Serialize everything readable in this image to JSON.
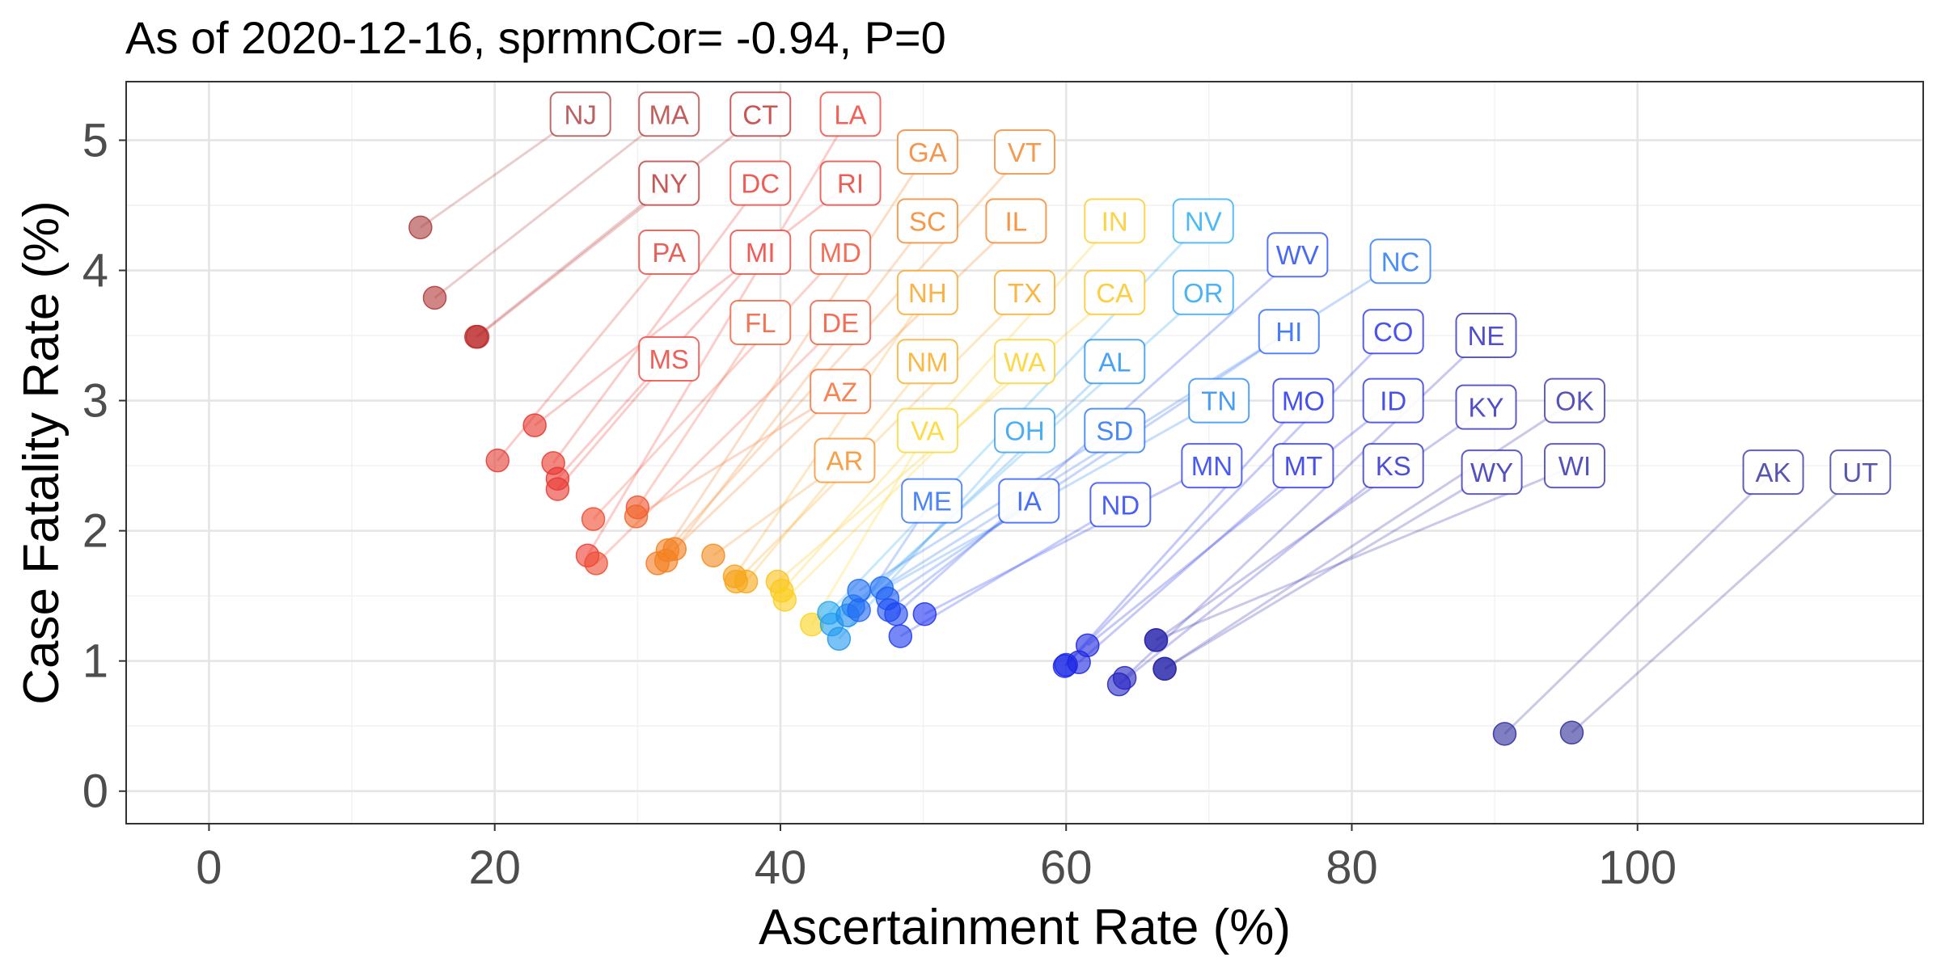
{
  "chart_data": {
    "type": "scatter",
    "title": "As of 2020-12-16, sprmnCor= -0.94, P=0",
    "xlabel": "Ascertainment Rate (%)",
    "ylabel": "Case Fatality Rate (%)",
    "xlim": [
      -5.8,
      120
    ],
    "ylim": [
      -0.25,
      5.45
    ],
    "xticks": [
      0,
      20,
      40,
      60,
      80,
      100
    ],
    "yticks": [
      0,
      1,
      2,
      3,
      4,
      5
    ],
    "grid": true,
    "legend": "none",
    "points": [
      {
        "state": "NJ",
        "x": 14.8,
        "y": 4.33,
        "color": "#aa3a3a",
        "lx": 26.0,
        "ly": 5.2
      },
      {
        "state": "MA",
        "x": 15.8,
        "y": 3.79,
        "color": "#b23636",
        "lx": 32.2,
        "ly": 5.2
      },
      {
        "state": "NY",
        "x": 18.7,
        "y": 3.49,
        "color": "#b82e2e",
        "lx": 32.2,
        "ly": 4.67
      },
      {
        "state": "CT",
        "x": 18.8,
        "y": 3.49,
        "color": "#be2a2a",
        "lx": 38.6,
        "ly": 5.2
      },
      {
        "state": "RI",
        "x": 22.8,
        "y": 2.81,
        "color": "#e6342c",
        "lx": 44.9,
        "ly": 4.67
      },
      {
        "state": "LA",
        "x": 26.5,
        "y": 1.81,
        "color": "#ee3a30",
        "lx": 44.9,
        "ly": 5.2
      },
      {
        "state": "DC",
        "x": 24.1,
        "y": 2.52,
        "color": "#e9372c",
        "lx": 38.6,
        "ly": 4.67
      },
      {
        "state": "PA",
        "x": 20.2,
        "y": 2.54,
        "color": "#e23a30",
        "lx": 32.2,
        "ly": 4.14
      },
      {
        "state": "MI",
        "x": 24.4,
        "y": 2.4,
        "color": "#ea3530",
        "lx": 38.6,
        "ly": 4.14
      },
      {
        "state": "MS",
        "x": 24.4,
        "y": 2.32,
        "color": "#ea3830",
        "lx": 32.2,
        "ly": 3.32
      },
      {
        "state": "MD",
        "x": 26.9,
        "y": 2.09,
        "color": "#f04a2e",
        "lx": 44.2,
        "ly": 4.14
      },
      {
        "state": "IL",
        "x": 32.6,
        "y": 1.86,
        "color": "#f47a1a",
        "lx": 56.5,
        "ly": 4.38
      },
      {
        "state": "DE",
        "x": 27.1,
        "y": 1.75,
        "color": "#f04a30",
        "lx": 44.2,
        "ly": 3.6
      },
      {
        "state": "FL",
        "x": 30.0,
        "y": 2.18,
        "color": "#f0502a",
        "lx": 38.6,
        "ly": 3.6
      },
      {
        "state": "AZ",
        "x": 29.9,
        "y": 2.11,
        "color": "#f26428",
        "lx": 44.2,
        "ly": 3.07
      },
      {
        "state": "GA",
        "x": 31.4,
        "y": 1.75,
        "color": "#f47a20",
        "lx": 50.3,
        "ly": 4.91
      },
      {
        "state": "SC",
        "x": 32.0,
        "y": 1.77,
        "color": "#f47e1c",
        "lx": 50.3,
        "ly": 4.38
      },
      {
        "state": "VT",
        "x": 32.1,
        "y": 1.85,
        "color": "#f48020",
        "lx": 57.1,
        "ly": 4.91
      },
      {
        "state": "AR",
        "x": 35.3,
        "y": 1.81,
        "color": "#f48a1c",
        "lx": 44.5,
        "ly": 2.54
      },
      {
        "state": "NH",
        "x": 36.8,
        "y": 1.65,
        "color": "#f6a01c",
        "lx": 50.3,
        "ly": 3.83
      },
      {
        "state": "TX",
        "x": 36.9,
        "y": 1.61,
        "color": "#f7a418",
        "lx": 57.1,
        "ly": 3.83
      },
      {
        "state": "NM",
        "x": 37.6,
        "y": 1.61,
        "color": "#f8a818",
        "lx": 50.3,
        "ly": 3.3
      },
      {
        "state": "CA",
        "x": 39.8,
        "y": 1.61,
        "color": "#fbc218",
        "lx": 63.4,
        "ly": 3.83
      },
      {
        "state": "IN",
        "x": 40.1,
        "y": 1.54,
        "color": "#fbc81a",
        "lx": 63.4,
        "ly": 4.38
      },
      {
        "state": "WA",
        "x": 40.3,
        "y": 1.47,
        "color": "#fbce1c",
        "lx": 57.1,
        "ly": 3.3
      },
      {
        "state": "VA",
        "x": 42.2,
        "y": 1.28,
        "color": "#fcd21c",
        "lx": 50.3,
        "ly": 2.77
      },
      {
        "state": "NV",
        "x": 43.4,
        "y": 1.37,
        "color": "#22a8f0",
        "lx": 69.6,
        "ly": 4.38
      },
      {
        "state": "OR",
        "x": 43.6,
        "y": 1.28,
        "color": "#22a0f0",
        "lx": 69.6,
        "ly": 3.83
      },
      {
        "state": "OH",
        "x": 44.1,
        "y": 1.17,
        "color": "#2098f0",
        "lx": 57.1,
        "ly": 2.77
      },
      {
        "state": "AL",
        "x": 44.7,
        "y": 1.35,
        "color": "#1c8cf0",
        "lx": 63.4,
        "ly": 3.3
      },
      {
        "state": "TN",
        "x": 45.1,
        "y": 1.42,
        "color": "#1c84f0",
        "lx": 70.7,
        "ly": 3.0
      },
      {
        "state": "SD",
        "x": 45.5,
        "y": 1.54,
        "color": "#1c6cf4",
        "lx": 63.4,
        "ly": 2.77
      },
      {
        "state": "ME",
        "x": 45.5,
        "y": 1.39,
        "color": "#2066f4",
        "lx": 50.6,
        "ly": 2.23
      },
      {
        "state": "NC",
        "x": 47.1,
        "y": 1.56,
        "color": "#1c70f4",
        "lx": 83.4,
        "ly": 4.07
      },
      {
        "state": "HI",
        "x": 47.5,
        "y": 1.48,
        "color": "#1c5cf4",
        "lx": 75.6,
        "ly": 3.53
      },
      {
        "state": "IA",
        "x": 47.6,
        "y": 1.39,
        "color": "#1c4cf4",
        "lx": 57.4,
        "ly": 2.23
      },
      {
        "state": "WV",
        "x": 48.1,
        "y": 1.36,
        "color": "#1c44f0",
        "lx": 76.2,
        "ly": 4.12
      },
      {
        "state": "ND",
        "x": 48.4,
        "y": 1.19,
        "color": "#1c38f0",
        "lx": 63.8,
        "ly": 2.2
      },
      {
        "state": "MN",
        "x": 50.1,
        "y": 1.36,
        "color": "#1c30f0",
        "lx": 70.2,
        "ly": 2.5
      },
      {
        "state": "MO",
        "x": 59.9,
        "y": 0.96,
        "color": "#1826e8",
        "lx": 76.6,
        "ly": 3.0
      },
      {
        "state": "CO",
        "x": 60.0,
        "y": 0.97,
        "color": "#1c28e8",
        "lx": 82.9,
        "ly": 3.53
      },
      {
        "state": "MT",
        "x": 60.9,
        "y": 0.99,
        "color": "#1c24e0",
        "lx": 76.6,
        "ly": 2.5
      },
      {
        "state": "ID",
        "x": 61.5,
        "y": 1.12,
        "color": "#1c26e0",
        "lx": 82.9,
        "ly": 3.0
      },
      {
        "state": "KS",
        "x": 63.7,
        "y": 0.82,
        "color": "#2224c8",
        "lx": 82.9,
        "ly": 2.5
      },
      {
        "state": "NE",
        "x": 64.1,
        "y": 0.87,
        "color": "#2422c0",
        "lx": 89.4,
        "ly": 3.5
      },
      {
        "state": "KY",
        "x": 66.3,
        "y": 1.16,
        "color": "#2624b8",
        "lx": 89.4,
        "ly": 2.95
      },
      {
        "state": "WY",
        "x": 66.9,
        "y": 0.94,
        "color": "#2826b0",
        "lx": 89.8,
        "ly": 2.45
      },
      {
        "state": "OK",
        "x": 66.9,
        "y": 0.94,
        "color": "#2a28a8",
        "lx": 95.6,
        "ly": 3.0
      },
      {
        "state": "WI",
        "x": 66.3,
        "y": 1.16,
        "color": "#2a28a8",
        "lx": 95.6,
        "ly": 2.5
      },
      {
        "state": "AK",
        "x": 90.7,
        "y": 0.44,
        "color": "#2c2a9c",
        "lx": 109.5,
        "ly": 2.45
      },
      {
        "state": "UT",
        "x": 95.4,
        "y": 0.45,
        "color": "#2e2c98",
        "lx": 115.6,
        "ly": 2.45
      }
    ]
  }
}
